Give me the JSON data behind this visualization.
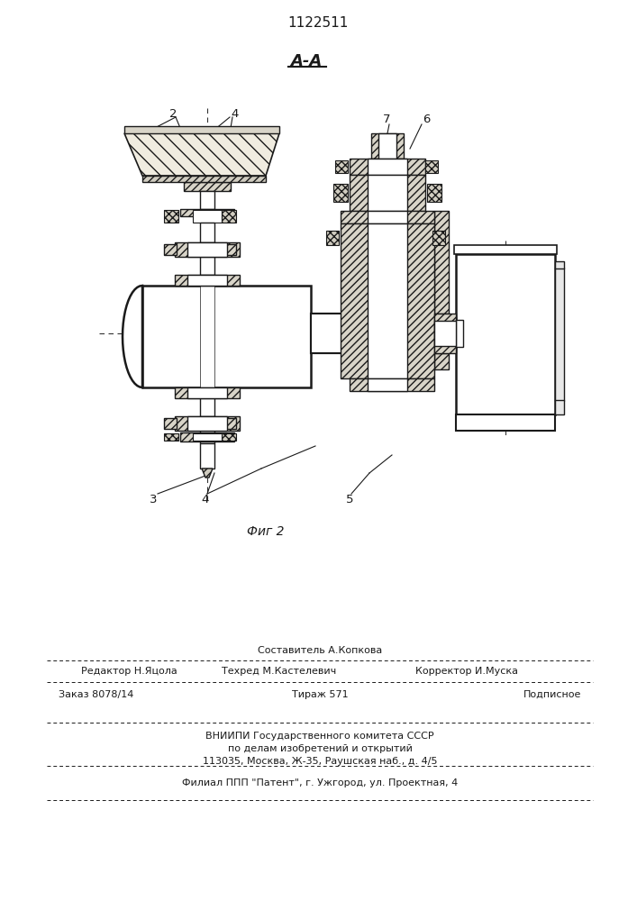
{
  "title": "1122511",
  "section_label": "А-А",
  "fig_label": "Фиг 2",
  "bg_color": "#ffffff",
  "line_color": "#1a1a1a",
  "footer": {
    "line1_center_top": "Составитель А.Копкова",
    "line1_left": "Редактор Н.Яцола",
    "line1_center_bot": "Техред М.Кастелевич",
    "line1_right": "Корректор И.Муска",
    "line2_left": "Заказ 8078/14",
    "line2_center": "Тираж 571",
    "line2_right": "Подписное",
    "line3": "ВНИИПИ Государственного комитета СССР",
    "line4": "по делам изобретений и открытий",
    "line5": "113035, Москва, Ж-35, Раушская наб., д. 4/5",
    "line6": "Филиал ППП \"Патент\", г. Ужгород, ул. Проектная, 4"
  }
}
